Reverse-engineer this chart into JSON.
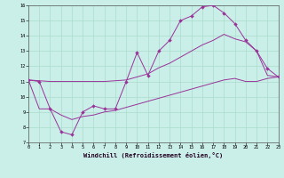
{
  "xlabel": "Windchill (Refroidissement éolien,°C)",
  "bg_color": "#caeee8",
  "grid_color": "#aaddcc",
  "line_color": "#993399",
  "xlim": [
    0,
    23
  ],
  "ylim": [
    7,
    16
  ],
  "xticks": [
    0,
    1,
    2,
    3,
    4,
    5,
    6,
    7,
    8,
    9,
    10,
    11,
    12,
    13,
    14,
    15,
    16,
    17,
    18,
    19,
    20,
    21,
    22,
    23
  ],
  "yticks": [
    7,
    8,
    9,
    10,
    11,
    12,
    13,
    14,
    15,
    16
  ],
  "series1_x": [
    0,
    1,
    2,
    3,
    4,
    5,
    6,
    7,
    8,
    9,
    10,
    11,
    12,
    13,
    14,
    15,
    16,
    17,
    18,
    19,
    20,
    21,
    22,
    23
  ],
  "series1_y": [
    11.1,
    11.0,
    9.2,
    7.7,
    7.5,
    9.0,
    9.4,
    9.2,
    9.2,
    11.0,
    12.9,
    11.4,
    13.0,
    13.7,
    15.0,
    15.3,
    15.9,
    16.0,
    15.5,
    14.8,
    13.7,
    13.0,
    11.85,
    11.3
  ],
  "series2_x": [
    0,
    1,
    2,
    3,
    4,
    5,
    6,
    7,
    8,
    9,
    10,
    11,
    12,
    13,
    14,
    15,
    16,
    17,
    18,
    19,
    20,
    21,
    22,
    23
  ],
  "series2_y": [
    11.1,
    11.05,
    11.0,
    11.0,
    11.0,
    11.0,
    11.0,
    11.0,
    11.05,
    11.1,
    11.3,
    11.5,
    11.9,
    12.2,
    12.6,
    13.0,
    13.4,
    13.7,
    14.1,
    13.8,
    13.6,
    13.0,
    11.4,
    11.3
  ],
  "series3_x": [
    0,
    1,
    2,
    3,
    4,
    5,
    6,
    7,
    8,
    9,
    10,
    11,
    12,
    13,
    14,
    15,
    16,
    17,
    18,
    19,
    20,
    21,
    22,
    23
  ],
  "series3_y": [
    11.1,
    9.2,
    9.2,
    8.8,
    8.5,
    8.7,
    8.8,
    9.0,
    9.1,
    9.3,
    9.5,
    9.7,
    9.9,
    10.1,
    10.3,
    10.5,
    10.7,
    10.9,
    11.1,
    11.2,
    11.0,
    11.0,
    11.2,
    11.3
  ]
}
